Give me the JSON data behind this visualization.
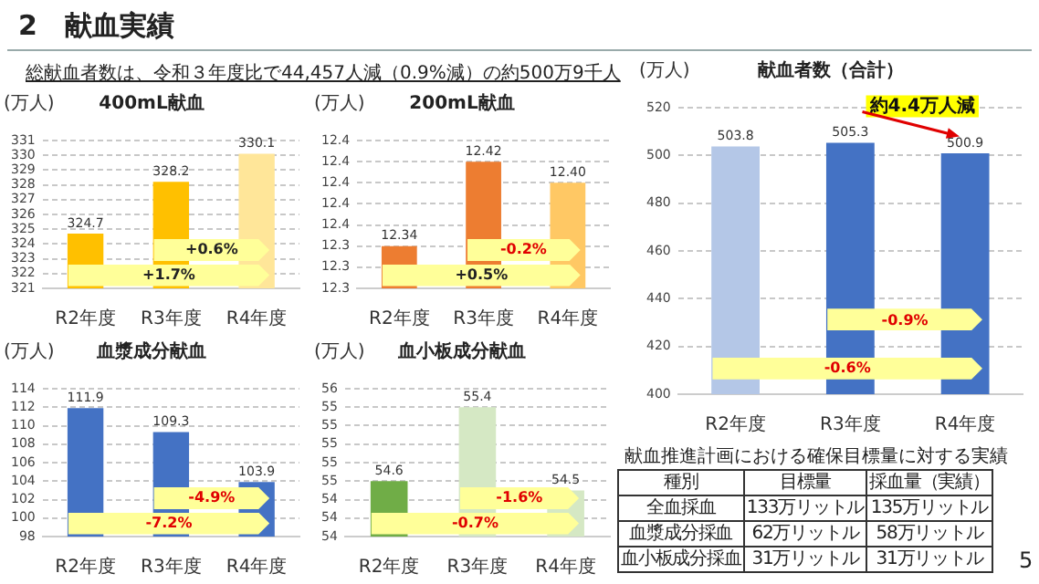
{
  "chart_data": [
    {
      "type": "other",
      "title": "2　献血実績",
      "subtitle": "総献血者数は、令和３年度比で44,457人減（0.9%減）の約500万9千人",
      "annotations": [
        "献血推進計画における確保目標量に対する実績",
        "種別",
        "目標量",
        "採血量（実績）",
        "全血採血",
        "133万リットル",
        "135万リットル",
        "血漿成分採血",
        "62万リットル",
        "58万リットル",
        "血小板成分採血",
        "31万リットル",
        "31万リットル",
        "5"
      ]
    },
    {
      "type": "bar",
      "title": "400mL献血",
      "ylabel": "(万人)",
      "categories": [
        "R2年度",
        "R3年度",
        "R4年度"
      ],
      "values": [
        324.7,
        328.2,
        330.1
      ],
      "value_labels": [
        "324.7",
        "328.2",
        "330.1"
      ],
      "colors": [
        "#ffc000",
        "#ffc000",
        "#ffe699"
      ],
      "ylim": [
        321,
        331
      ],
      "yticks": [
        321,
        322,
        323,
        324,
        325,
        326,
        327,
        328,
        329,
        330,
        331
      ],
      "grid": "y",
      "annotations": [
        "+0.6%",
        "+1.7%"
      ]
    },
    {
      "type": "bar",
      "title": "200mL献血",
      "ylabel": "(万人)",
      "categories": [
        "R2年度",
        "R3年度",
        "R4年度"
      ],
      "values": [
        12.34,
        12.42,
        12.4
      ],
      "value_labels": [
        "12.34",
        "12.42",
        "12.40"
      ],
      "colors": [
        "#ed7d31",
        "#ed7d31",
        "#ffc864"
      ],
      "ylim": [
        12.3,
        12.44
      ],
      "yticks": [
        {
          "value": 12.3,
          "label": "12.3"
        },
        {
          "value": 12.32,
          "label": "12.3"
        },
        {
          "value": 12.34,
          "label": "12.3"
        },
        {
          "value": 12.36,
          "label": "12.4"
        },
        {
          "value": 12.38,
          "label": "12.4"
        },
        {
          "value": 12.4,
          "label": "12.4"
        },
        {
          "value": 12.42,
          "label": "12.4"
        },
        {
          "value": 12.44,
          "label": "12.4"
        }
      ],
      "grid": "y",
      "annotations": [
        "-0.2%",
        "+0.5%"
      ]
    },
    {
      "type": "bar",
      "title": "血漿成分献血",
      "ylabel": "(万人)",
      "categories": [
        "R2年度",
        "R3年度",
        "R4年度"
      ],
      "values": [
        111.9,
        109.3,
        103.9
      ],
      "value_labels": [
        "111.9",
        "109.3",
        "103.9"
      ],
      "colors": [
        "#4472c4",
        "#4472c4",
        "#4472c4"
      ],
      "ylim": [
        98,
        114
      ],
      "yticks": [
        98,
        100,
        102,
        104,
        106,
        108,
        110,
        112,
        114
      ],
      "grid": "y",
      "annotations": [
        "-4.9%",
        "-7.2%"
      ]
    },
    {
      "type": "bar",
      "title": "血小板成分献血",
      "ylabel": "(万人)",
      "categories": [
        "R2年度",
        "R3年度",
        "R4年度"
      ],
      "values": [
        54.6,
        55.4,
        54.5
      ],
      "value_labels": [
        "54.6",
        "55.4",
        "54.5"
      ],
      "colors": [
        "#70ad47",
        "#d5e8c4",
        "#d5e8c4"
      ],
      "ylim": [
        54.0,
        55.6
      ],
      "yticks": [
        {
          "value": 54.0,
          "label": "54"
        },
        {
          "value": 54.2,
          "label": "54"
        },
        {
          "value": 54.4,
          "label": "54"
        },
        {
          "value": 54.6,
          "label": "55"
        },
        {
          "value": 54.8,
          "label": "55"
        },
        {
          "value": 55.0,
          "label": "55"
        },
        {
          "value": 55.2,
          "label": "55"
        },
        {
          "value": 55.4,
          "label": "55"
        },
        {
          "value": 55.6,
          "label": "56"
        }
      ],
      "grid": "y",
      "annotations": [
        "-1.6%",
        "-0.7%"
      ]
    },
    {
      "type": "bar",
      "title": "献血者数（合計）",
      "ylabel": "(万人)",
      "categories": [
        "R2年度",
        "R3年度",
        "R4年度"
      ],
      "values": [
        503.8,
        505.3,
        500.9
      ],
      "value_labels": [
        "503.8",
        "505.3",
        "500.9"
      ],
      "colors": [
        "#b4c7e7",
        "#4472c4",
        "#4472c4"
      ],
      "ylim": [
        400,
        520
      ],
      "yticks": [
        400,
        420,
        440,
        460,
        480,
        500,
        520
      ],
      "grid": "y",
      "annotations": [
        "約4.4万人減",
        "-0.9%",
        "-0.6%"
      ]
    }
  ]
}
